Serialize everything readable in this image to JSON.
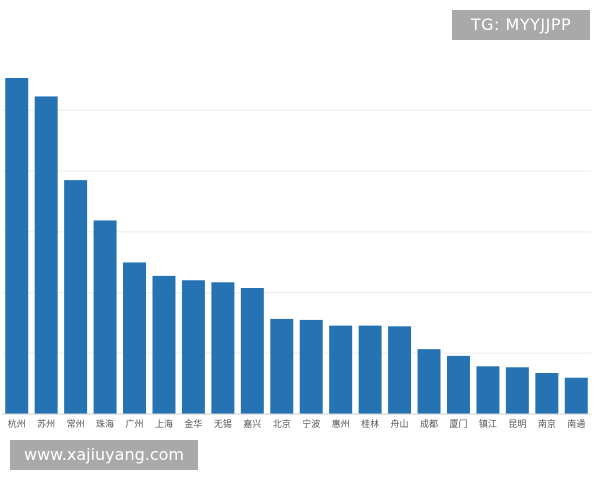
{
  "watermarks": {
    "top_right": "TG: MYYJJPP",
    "bottom_left": "www.xajiuyang.com"
  },
  "colors": {
    "bar": "#2673b4",
    "grid": "#ececec",
    "axis": "#cfcfcf",
    "tick_text": "#555555"
  },
  "chart_data": {
    "type": "bar",
    "categories": [
      "杭州",
      "苏州",
      "常州",
      "珠海",
      "广州",
      "上海",
      "金华",
      "无锡",
      "嘉兴",
      "北京",
      "宁波",
      "惠州",
      "桂林",
      "舟山",
      "成都",
      "厦门",
      "镇江",
      "昆明",
      "南京",
      "南通"
    ],
    "values": [
      100,
      94.5,
      69.6,
      57.6,
      45.1,
      41.1,
      39.8,
      39.2,
      37.5,
      28.3,
      28.0,
      26.3,
      26.3,
      26.1,
      19.3,
      17.3,
      14.2,
      13.9,
      12.2,
      10.8
    ],
    "ylim": [
      0,
      111.3
    ],
    "grid": true,
    "gridlines": [
      0,
      18.1,
      36.1,
      54.2,
      72.3,
      90.4
    ]
  }
}
